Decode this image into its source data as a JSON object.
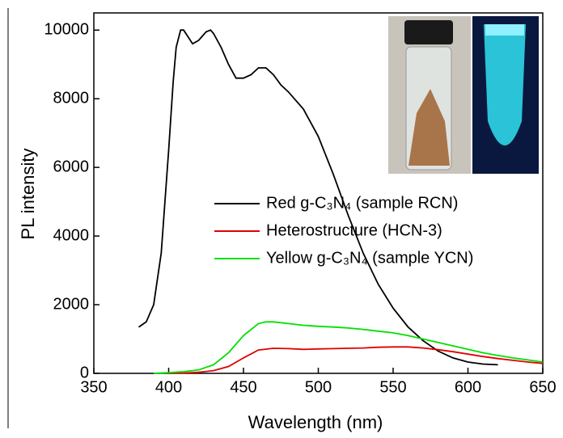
{
  "chart_data": {
    "type": "line",
    "x_label": "Wavelength (nm)",
    "y_label": "PL intensity",
    "xlim": [
      350,
      650
    ],
    "xticks": [
      350,
      400,
      450,
      500,
      550,
      600,
      650
    ],
    "ylim": [
      0,
      10500
    ],
    "yticks": [
      0,
      2000,
      4000,
      6000,
      8000,
      10000
    ],
    "legend": "center-right",
    "series": [
      {
        "name": "Red g-C₃N₄ (sample RCN)",
        "color": "#000000",
        "x": [
          380,
          385,
          390,
          395,
          400,
          403,
          405,
          408,
          410,
          413,
          416,
          420,
          425,
          428,
          430,
          435,
          440,
          445,
          450,
          455,
          460,
          465,
          470,
          475,
          480,
          490,
          500,
          510,
          520,
          530,
          540,
          550,
          560,
          570,
          580,
          590,
          600,
          610,
          620
        ],
        "values": [
          1350,
          1500,
          2000,
          3500,
          6500,
          8500,
          9500,
          10000,
          10000,
          9800,
          9600,
          9700,
          9950,
          10000,
          9900,
          9500,
          9000,
          8600,
          8600,
          8700,
          8900,
          8900,
          8700,
          8400,
          8200,
          7700,
          6900,
          5800,
          4600,
          3500,
          2600,
          1900,
          1350,
          950,
          650,
          450,
          330,
          270,
          250
        ]
      },
      {
        "name": "Heterostructure (HCN-3)",
        "color": "#e00000",
        "x": [
          400,
          410,
          420,
          430,
          440,
          450,
          460,
          470,
          480,
          490,
          500,
          510,
          520,
          530,
          540,
          550,
          560,
          570,
          580,
          590,
          600,
          610,
          620,
          630,
          640,
          650
        ],
        "values": [
          0,
          10,
          30,
          80,
          200,
          450,
          680,
          730,
          720,
          700,
          710,
          720,
          730,
          740,
          760,
          770,
          770,
          740,
          690,
          630,
          560,
          490,
          430,
          380,
          330,
          290
        ]
      },
      {
        "name": "Yellow g-C₃N₄ (sample YCN)",
        "color": "#00e000",
        "x": [
          390,
          400,
          410,
          420,
          430,
          440,
          450,
          460,
          465,
          470,
          480,
          490,
          500,
          510,
          520,
          530,
          540,
          550,
          560,
          570,
          580,
          590,
          600,
          610,
          620,
          630,
          640,
          650
        ],
        "values": [
          0,
          20,
          50,
          100,
          250,
          600,
          1100,
          1450,
          1500,
          1500,
          1450,
          1400,
          1370,
          1350,
          1320,
          1280,
          1230,
          1180,
          1100,
          1000,
          900,
          800,
          700,
          600,
          520,
          450,
          390,
          330
        ]
      }
    ]
  }
}
